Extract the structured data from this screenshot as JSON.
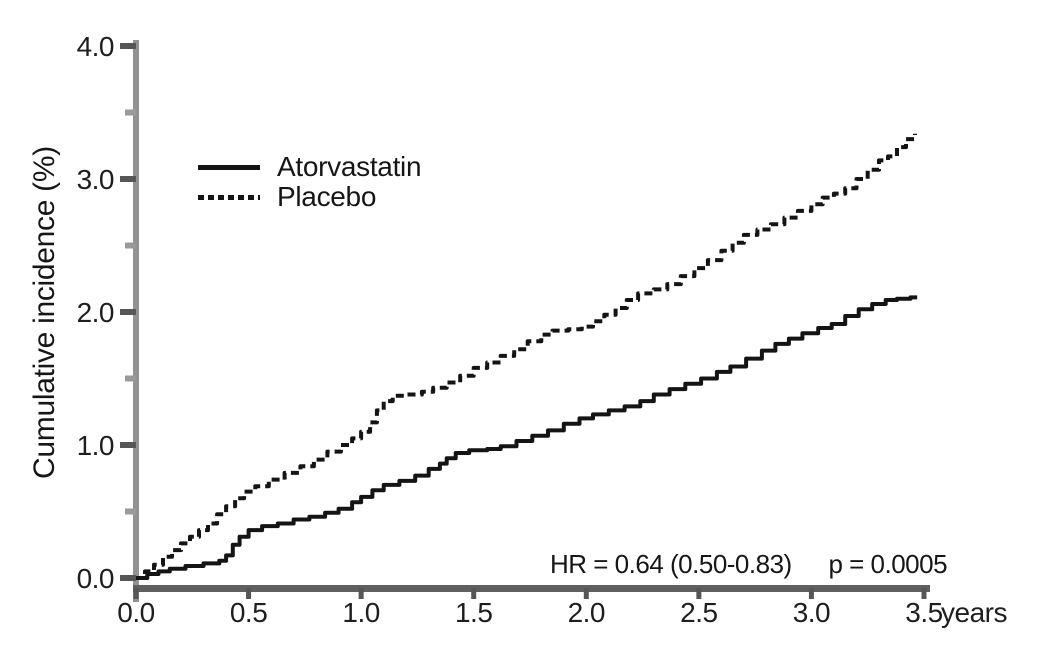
{
  "colors": {
    "curve": "#141414",
    "y_axis_line": "#929292",
    "x_axis_line": "#5f5f5f",
    "tick_major": "#565656",
    "tick_minor": "#9a9a9a",
    "text": "#1e1e1e"
  },
  "chart_data": {
    "type": "line",
    "subtype": "kaplan-meier-cumulative-incidence",
    "title": "",
    "ylabel": "Cumulative incidence (%)",
    "xlabel": "years",
    "xlim": [
      0,
      3.5
    ],
    "ylim": [
      0,
      4.0
    ],
    "grid": false,
    "legend_position": "inside-upper-left",
    "x_ticks": [
      {
        "value": 0.0,
        "label": "0.0"
      },
      {
        "value": 0.5,
        "label": "0.5"
      },
      {
        "value": 1.0,
        "label": "1.0"
      },
      {
        "value": 1.5,
        "label": "1.5"
      },
      {
        "value": 2.0,
        "label": "2.0"
      },
      {
        "value": 2.5,
        "label": "2.5"
      },
      {
        "value": 3.0,
        "label": "3.0"
      },
      {
        "value": 3.5,
        "label": "3.5"
      }
    ],
    "y_major_ticks": [
      {
        "value": 0.0,
        "label": "0.0"
      },
      {
        "value": 1.0,
        "label": "1.0"
      },
      {
        "value": 2.0,
        "label": "2.0"
      },
      {
        "value": 3.0,
        "label": "3.0"
      },
      {
        "value": 4.0,
        "label": "4.0"
      }
    ],
    "y_minor_ticks": [
      0.5,
      1.5,
      2.5,
      3.5
    ],
    "annotation": {
      "hr": "HR = 0.64 (0.50-0.83)",
      "p": "p = 0.0005"
    },
    "series": [
      {
        "name": "Atorvastatin",
        "line_style": "solid",
        "color": "#141414",
        "points": [
          [
            0,
            0
          ],
          [
            0.05,
            0.03
          ],
          [
            0.1,
            0.05
          ],
          [
            0.15,
            0.07
          ],
          [
            0.22,
            0.09
          ],
          [
            0.3,
            0.11
          ],
          [
            0.37,
            0.13
          ],
          [
            0.4,
            0.17
          ],
          [
            0.43,
            0.25
          ],
          [
            0.46,
            0.31
          ],
          [
            0.5,
            0.36
          ],
          [
            0.56,
            0.39
          ],
          [
            0.63,
            0.41
          ],
          [
            0.7,
            0.44
          ],
          [
            0.77,
            0.46
          ],
          [
            0.84,
            0.49
          ],
          [
            0.9,
            0.52
          ],
          [
            0.96,
            0.57
          ],
          [
            1.0,
            0.61
          ],
          [
            1.05,
            0.66
          ],
          [
            1.1,
            0.7
          ],
          [
            1.17,
            0.73
          ],
          [
            1.24,
            0.77
          ],
          [
            1.3,
            0.82
          ],
          [
            1.35,
            0.86
          ],
          [
            1.38,
            0.9
          ],
          [
            1.42,
            0.94
          ],
          [
            1.48,
            0.96
          ],
          [
            1.56,
            0.97
          ],
          [
            1.62,
            0.99
          ],
          [
            1.69,
            1.03
          ],
          [
            1.76,
            1.07
          ],
          [
            1.83,
            1.11
          ],
          [
            1.9,
            1.16
          ],
          [
            1.97,
            1.2
          ],
          [
            2.03,
            1.23
          ],
          [
            2.1,
            1.26
          ],
          [
            2.17,
            1.29
          ],
          [
            2.24,
            1.33
          ],
          [
            2.3,
            1.38
          ],
          [
            2.37,
            1.42
          ],
          [
            2.44,
            1.46
          ],
          [
            2.51,
            1.5
          ],
          [
            2.58,
            1.55
          ],
          [
            2.64,
            1.59
          ],
          [
            2.71,
            1.65
          ],
          [
            2.78,
            1.71
          ],
          [
            2.84,
            1.76
          ],
          [
            2.9,
            1.8
          ],
          [
            2.96,
            1.84
          ],
          [
            3.03,
            1.88
          ],
          [
            3.09,
            1.91
          ],
          [
            3.15,
            1.97
          ],
          [
            3.21,
            2.02
          ],
          [
            3.27,
            2.06
          ],
          [
            3.33,
            2.09
          ],
          [
            3.38,
            2.1
          ],
          [
            3.44,
            2.11
          ],
          [
            3.47,
            2.11
          ]
        ]
      },
      {
        "name": "Placebo",
        "line_style": "dashed",
        "color": "#141414",
        "points": [
          [
            0,
            0
          ],
          [
            0.04,
            0.05
          ],
          [
            0.08,
            0.1
          ],
          [
            0.12,
            0.16
          ],
          [
            0.16,
            0.21
          ],
          [
            0.2,
            0.26
          ],
          [
            0.24,
            0.31
          ],
          [
            0.28,
            0.36
          ],
          [
            0.32,
            0.41
          ],
          [
            0.36,
            0.48
          ],
          [
            0.4,
            0.54
          ],
          [
            0.44,
            0.6
          ],
          [
            0.48,
            0.65
          ],
          [
            0.53,
            0.69
          ],
          [
            0.59,
            0.74
          ],
          [
            0.66,
            0.79
          ],
          [
            0.73,
            0.84
          ],
          [
            0.79,
            0.89
          ],
          [
            0.85,
            0.95
          ],
          [
            0.91,
            1.0
          ],
          [
            0.96,
            1.05
          ],
          [
            1.0,
            1.1
          ],
          [
            1.04,
            1.17
          ],
          [
            1.07,
            1.26
          ],
          [
            1.1,
            1.33
          ],
          [
            1.14,
            1.37
          ],
          [
            1.2,
            1.38
          ],
          [
            1.27,
            1.4
          ],
          [
            1.32,
            1.43
          ],
          [
            1.38,
            1.47
          ],
          [
            1.44,
            1.52
          ],
          [
            1.5,
            1.58
          ],
          [
            1.56,
            1.62
          ],
          [
            1.62,
            1.67
          ],
          [
            1.68,
            1.72
          ],
          [
            1.74,
            1.78
          ],
          [
            1.8,
            1.83
          ],
          [
            1.85,
            1.86
          ],
          [
            1.92,
            1.87
          ],
          [
            1.98,
            1.89
          ],
          [
            2.03,
            1.93
          ],
          [
            2.08,
            1.98
          ],
          [
            2.13,
            2.03
          ],
          [
            2.18,
            2.09
          ],
          [
            2.23,
            2.14
          ],
          [
            2.3,
            2.17
          ],
          [
            2.36,
            2.21
          ],
          [
            2.42,
            2.27
          ],
          [
            2.48,
            2.33
          ],
          [
            2.54,
            2.39
          ],
          [
            2.6,
            2.46
          ],
          [
            2.65,
            2.52
          ],
          [
            2.7,
            2.58
          ],
          [
            2.76,
            2.62
          ],
          [
            2.82,
            2.66
          ],
          [
            2.88,
            2.71
          ],
          [
            2.94,
            2.76
          ],
          [
            3.0,
            2.81
          ],
          [
            3.05,
            2.86
          ],
          [
            3.1,
            2.89
          ],
          [
            3.15,
            2.93
          ],
          [
            3.2,
            3.0
          ],
          [
            3.25,
            3.07
          ],
          [
            3.3,
            3.14
          ],
          [
            3.34,
            3.17
          ],
          [
            3.38,
            3.24
          ],
          [
            3.42,
            3.3
          ],
          [
            3.46,
            3.34
          ]
        ]
      }
    ]
  }
}
